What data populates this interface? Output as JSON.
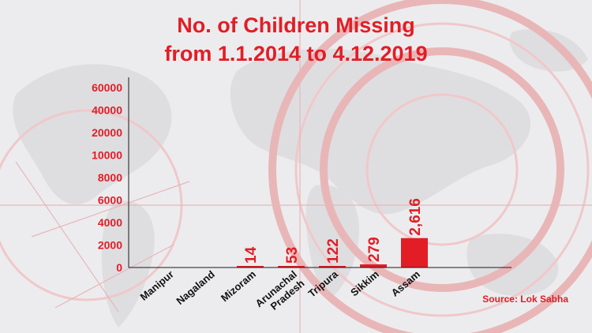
{
  "chart_data": {
    "type": "bar",
    "title_lines": [
      "No. of Children Missing",
      "from 1.1.2014 to 4.12.2019"
    ],
    "categories": [
      [
        "Manipur"
      ],
      [
        "Nagaland"
      ],
      [
        "Mizoram"
      ],
      [
        "Arunachal",
        "Pradesh"
      ],
      [
        "Tripura"
      ],
      [
        "Sikkim"
      ],
      [
        "Assam"
      ]
    ],
    "values": [
      0,
      0,
      14,
      53,
      122,
      279,
      2616
    ],
    "data_labels": [
      "",
      "",
      "14",
      "53",
      "122",
      "279",
      "2,616"
    ],
    "y_ticks": [
      0,
      2000,
      4000,
      6000,
      8000,
      10000,
      20000,
      40000,
      60000
    ],
    "y_tick_labels": [
      "0",
      "2000",
      "4000",
      "6000",
      "8000",
      "10000",
      "20000",
      "40000",
      "60000"
    ],
    "xlabel": "",
    "ylabel": "",
    "grid": false,
    "legend": "none",
    "bar_color": "#e21d25",
    "text_color": "#e21d25",
    "axis_color": "#1a1a1a"
  },
  "source": "Source: Lok Sabha"
}
